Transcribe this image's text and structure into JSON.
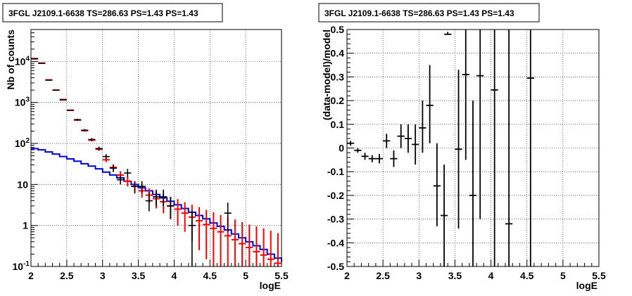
{
  "chart_data": [
    {
      "type": "step-line-errorbar",
      "title": "3FGL J2109.1-6638 TS=286.63 PS=1.43 PS=1.43",
      "xlabel": "logE",
      "ylabel": "Nb of counts",
      "xlim": [
        2,
        5.5
      ],
      "ylim": [
        0.1,
        60000
      ],
      "yscale": "log",
      "grid": true,
      "x_ticks": [
        "2",
        "2.5",
        "3",
        "3.5",
        "4",
        "4.5",
        "5",
        "5.5"
      ],
      "y_ticks": [
        {
          "value": 0.1,
          "label": "10",
          "exp": "-1"
        },
        {
          "value": 1,
          "label": "1",
          "exp": ""
        },
        {
          "value": 10,
          "label": "10",
          "exp": ""
        },
        {
          "value": 100,
          "label": "10",
          "exp": "2"
        },
        {
          "value": 1000,
          "label": "10",
          "exp": "3"
        },
        {
          "value": 10000,
          "label": "10",
          "exp": "4"
        }
      ],
      "colors": {
        "data": "#000000",
        "model": "#ff0000",
        "source": "#0000dd"
      },
      "data_points": [
        {
          "x": 2.05,
          "y": 11500,
          "lo": 11300,
          "hi": 11700
        },
        {
          "x": 2.15,
          "y": 9000,
          "lo": 8800,
          "hi": 9200
        },
        {
          "x": 2.25,
          "y": 3500,
          "lo": 3400,
          "hi": 3600
        },
        {
          "x": 2.35,
          "y": 2000,
          "lo": 1950,
          "hi": 2050
        },
        {
          "x": 2.45,
          "y": 1150,
          "lo": 1120,
          "hi": 1180
        },
        {
          "x": 2.55,
          "y": 650,
          "lo": 630,
          "hi": 670
        },
        {
          "x": 2.65,
          "y": 380,
          "lo": 360,
          "hi": 400
        },
        {
          "x": 2.75,
          "y": 210,
          "lo": 200,
          "hi": 225
        },
        {
          "x": 2.85,
          "y": 125,
          "lo": 115,
          "hi": 135
        },
        {
          "x": 2.95,
          "y": 75,
          "lo": 68,
          "hi": 84
        },
        {
          "x": 3.05,
          "y": 48,
          "lo": 42,
          "hi": 55
        },
        {
          "x": 3.15,
          "y": 25,
          "lo": 20,
          "hi": 30
        },
        {
          "x": 3.25,
          "y": 13,
          "lo": 10,
          "hi": 17
        },
        {
          "x": 3.35,
          "y": 19,
          "lo": 15,
          "hi": 24
        },
        {
          "x": 3.45,
          "y": 9,
          "lo": 6,
          "hi": 12
        },
        {
          "x": 3.55,
          "y": 9,
          "lo": 6,
          "hi": 12
        },
        {
          "x": 3.65,
          "y": 4,
          "lo": 2.2,
          "hi": 6.5
        },
        {
          "x": 3.75,
          "y": 5,
          "lo": 3,
          "hi": 7.5
        },
        {
          "x": 3.85,
          "y": 5,
          "lo": 3,
          "hi": 7.5
        },
        {
          "x": 3.95,
          "y": 3,
          "lo": 1.5,
          "hi": 5
        },
        {
          "x": 4.25,
          "y": 1,
          "lo": 0.1,
          "hi": 2.3
        },
        {
          "x": 4.75,
          "y": 2,
          "lo": 0.7,
          "hi": 3.6
        }
      ],
      "model_points": [
        {
          "x": 2.05,
          "y": 11800,
          "lo": 11600,
          "hi": 12000
        },
        {
          "x": 2.15,
          "y": 9100,
          "lo": 8900,
          "hi": 9300
        },
        {
          "x": 2.25,
          "y": 3550,
          "lo": 3450,
          "hi": 3650
        },
        {
          "x": 2.35,
          "y": 2000,
          "lo": 1950,
          "hi": 2050
        },
        {
          "x": 2.45,
          "y": 1180,
          "lo": 1150,
          "hi": 1210
        },
        {
          "x": 2.55,
          "y": 640,
          "lo": 620,
          "hi": 660
        },
        {
          "x": 2.65,
          "y": 370,
          "lo": 355,
          "hi": 385
        },
        {
          "x": 2.75,
          "y": 205,
          "lo": 195,
          "hi": 215
        },
        {
          "x": 2.85,
          "y": 120,
          "lo": 112,
          "hi": 128
        },
        {
          "x": 2.95,
          "y": 72,
          "lo": 66,
          "hi": 79
        },
        {
          "x": 3.05,
          "y": 40,
          "lo": 35,
          "hi": 46
        },
        {
          "x": 3.15,
          "y": 26,
          "lo": 22,
          "hi": 31
        },
        {
          "x": 3.25,
          "y": 17,
          "lo": 13.5,
          "hi": 21
        },
        {
          "x": 3.35,
          "y": 12,
          "lo": 9,
          "hi": 15.5
        },
        {
          "x": 3.45,
          "y": 9,
          "lo": 6.5,
          "hi": 12
        },
        {
          "x": 3.55,
          "y": 7,
          "lo": 4.8,
          "hi": 9.5
        },
        {
          "x": 3.65,
          "y": 5.5,
          "lo": 3.5,
          "hi": 8
        },
        {
          "x": 3.75,
          "y": 4.5,
          "lo": 2.6,
          "hi": 6.8
        },
        {
          "x": 3.85,
          "y": 3.8,
          "lo": 2.0,
          "hi": 6
        },
        {
          "x": 3.95,
          "y": 3.0,
          "lo": 1.4,
          "hi": 5
        },
        {
          "x": 4.05,
          "y": 2.5,
          "lo": 1.0,
          "hi": 4.4
        },
        {
          "x": 4.15,
          "y": 2.0,
          "lo": 0.7,
          "hi": 3.7
        },
        {
          "x": 4.25,
          "y": 1.6,
          "lo": 0.4,
          "hi": 3.2
        },
        {
          "x": 4.35,
          "y": 1.3,
          "lo": 0.25,
          "hi": 2.8
        },
        {
          "x": 4.45,
          "y": 1.05,
          "lo": 0.15,
          "hi": 2.4
        },
        {
          "x": 4.55,
          "y": 0.85,
          "lo": 0.1,
          "hi": 2.1
        },
        {
          "x": 4.65,
          "y": 0.7,
          "lo": 0.1,
          "hi": 1.8
        },
        {
          "x": 4.75,
          "y": 0.56,
          "lo": 0.1,
          "hi": 1.6
        },
        {
          "x": 4.85,
          "y": 0.45,
          "lo": 0.1,
          "hi": 1.4
        },
        {
          "x": 4.95,
          "y": 0.36,
          "lo": 0.1,
          "hi": 1.2
        },
        {
          "x": 5.05,
          "y": 0.29,
          "lo": 0.1,
          "hi": 1.05
        },
        {
          "x": 5.15,
          "y": 0.23,
          "lo": 0.1,
          "hi": 0.95
        },
        {
          "x": 5.25,
          "y": 0.19,
          "lo": 0.1,
          "hi": 0.85
        },
        {
          "x": 5.35,
          "y": 0.15,
          "lo": 0.1,
          "hi": 0.75
        },
        {
          "x": 5.45,
          "y": 0.12,
          "lo": 0.1,
          "hi": 0.65
        }
      ],
      "source_step": [
        {
          "x": 2.0,
          "y": 75
        },
        {
          "x": 2.1,
          "y": 70
        },
        {
          "x": 2.2,
          "y": 62
        },
        {
          "x": 2.3,
          "y": 55
        },
        {
          "x": 2.4,
          "y": 48
        },
        {
          "x": 2.5,
          "y": 42
        },
        {
          "x": 2.6,
          "y": 37
        },
        {
          "x": 2.7,
          "y": 32
        },
        {
          "x": 2.8,
          "y": 28
        },
        {
          "x": 2.9,
          "y": 24
        },
        {
          "x": 3.0,
          "y": 20
        },
        {
          "x": 3.1,
          "y": 17
        },
        {
          "x": 3.2,
          "y": 14.5
        },
        {
          "x": 3.3,
          "y": 12
        },
        {
          "x": 3.4,
          "y": 10
        },
        {
          "x": 3.5,
          "y": 8.3
        },
        {
          "x": 3.6,
          "y": 7
        },
        {
          "x": 3.7,
          "y": 5.7
        },
        {
          "x": 3.8,
          "y": 4.7
        },
        {
          "x": 3.9,
          "y": 3.9
        },
        {
          "x": 4.0,
          "y": 3.2
        },
        {
          "x": 4.1,
          "y": 2.6
        },
        {
          "x": 4.2,
          "y": 2.1
        },
        {
          "x": 4.3,
          "y": 1.75
        },
        {
          "x": 4.4,
          "y": 1.45
        },
        {
          "x": 4.5,
          "y": 1.15
        },
        {
          "x": 4.6,
          "y": 0.95
        },
        {
          "x": 4.7,
          "y": 0.78
        },
        {
          "x": 4.8,
          "y": 0.62
        },
        {
          "x": 4.9,
          "y": 0.5
        },
        {
          "x": 5.0,
          "y": 0.4
        },
        {
          "x": 5.1,
          "y": 0.32
        },
        {
          "x": 5.2,
          "y": 0.26
        },
        {
          "x": 5.3,
          "y": 0.2
        },
        {
          "x": 5.4,
          "y": 0.16
        },
        {
          "x": 5.5,
          "y": 0.13
        }
      ]
    },
    {
      "type": "errorbar",
      "title": "3FGL J2109.1-6638 TS=286.63 PS=1.43 PS=1.43",
      "xlabel": "logE",
      "ylabel": "(data-model)/model",
      "xlim": [
        2,
        5.5
      ],
      "ylim": [
        -0.5,
        0.5
      ],
      "grid": true,
      "x_ticks": [
        "2",
        "2.5",
        "3",
        "3.5",
        "4",
        "4.5",
        "5",
        "5.5"
      ],
      "y_ticks": [
        "-0.5",
        "-0.4",
        "-0.3",
        "-0.2",
        "-0.1",
        "0",
        "0.1",
        "0.2",
        "0.3",
        "0.4",
        "0.5"
      ],
      "color": "#000000",
      "points": [
        {
          "x": 2.05,
          "y": 0.02,
          "lo": 0.01,
          "hi": 0.03
        },
        {
          "x": 2.15,
          "y": -0.01,
          "lo": -0.02,
          "hi": 0.0
        },
        {
          "x": 2.25,
          "y": -0.035,
          "lo": -0.05,
          "hi": -0.02
        },
        {
          "x": 2.35,
          "y": -0.045,
          "lo": -0.06,
          "hi": -0.03
        },
        {
          "x": 2.45,
          "y": -0.045,
          "lo": -0.065,
          "hi": -0.025
        },
        {
          "x": 2.55,
          "y": 0.03,
          "lo": 0.0,
          "hi": 0.06
        },
        {
          "x": 2.65,
          "y": -0.045,
          "lo": -0.08,
          "hi": -0.01
        },
        {
          "x": 2.75,
          "y": 0.05,
          "lo": 0.0,
          "hi": 0.1
        },
        {
          "x": 2.85,
          "y": 0.04,
          "lo": -0.02,
          "hi": 0.1
        },
        {
          "x": 2.95,
          "y": 0.015,
          "lo": -0.07,
          "hi": 0.1
        },
        {
          "x": 3.05,
          "y": 0.085,
          "lo": -0.02,
          "hi": 0.2
        },
        {
          "x": 3.15,
          "y": 0.18,
          "lo": 0.02,
          "hi": 0.35
        },
        {
          "x": 3.25,
          "y": -0.16,
          "lo": -0.33,
          "hi": 0.02
        },
        {
          "x": 3.35,
          "y": -0.285,
          "lo": -0.5,
          "hi": -0.07
        },
        {
          "x": 3.4,
          "y": 0.48,
          "lo": 0.48,
          "hi": 0.49
        },
        {
          "x": 3.55,
          "y": -0.005,
          "lo": -0.34,
          "hi": 0.33
        },
        {
          "x": 3.65,
          "y": 0.31,
          "lo": -0.05,
          "hi": 0.5
        },
        {
          "x": 3.75,
          "y": -0.2,
          "lo": -0.5,
          "hi": 0.2
        },
        {
          "x": 3.85,
          "y": 0.305,
          "lo": -0.3,
          "hi": 0.5
        },
        {
          "x": 4.05,
          "y": 0.245,
          "lo": -0.5,
          "hi": 0.5
        },
        {
          "x": 4.25,
          "y": -0.32,
          "lo": -0.5,
          "hi": 0.5
        },
        {
          "x": 4.55,
          "y": 0.295,
          "lo": -0.5,
          "hi": 0.5
        }
      ]
    }
  ]
}
